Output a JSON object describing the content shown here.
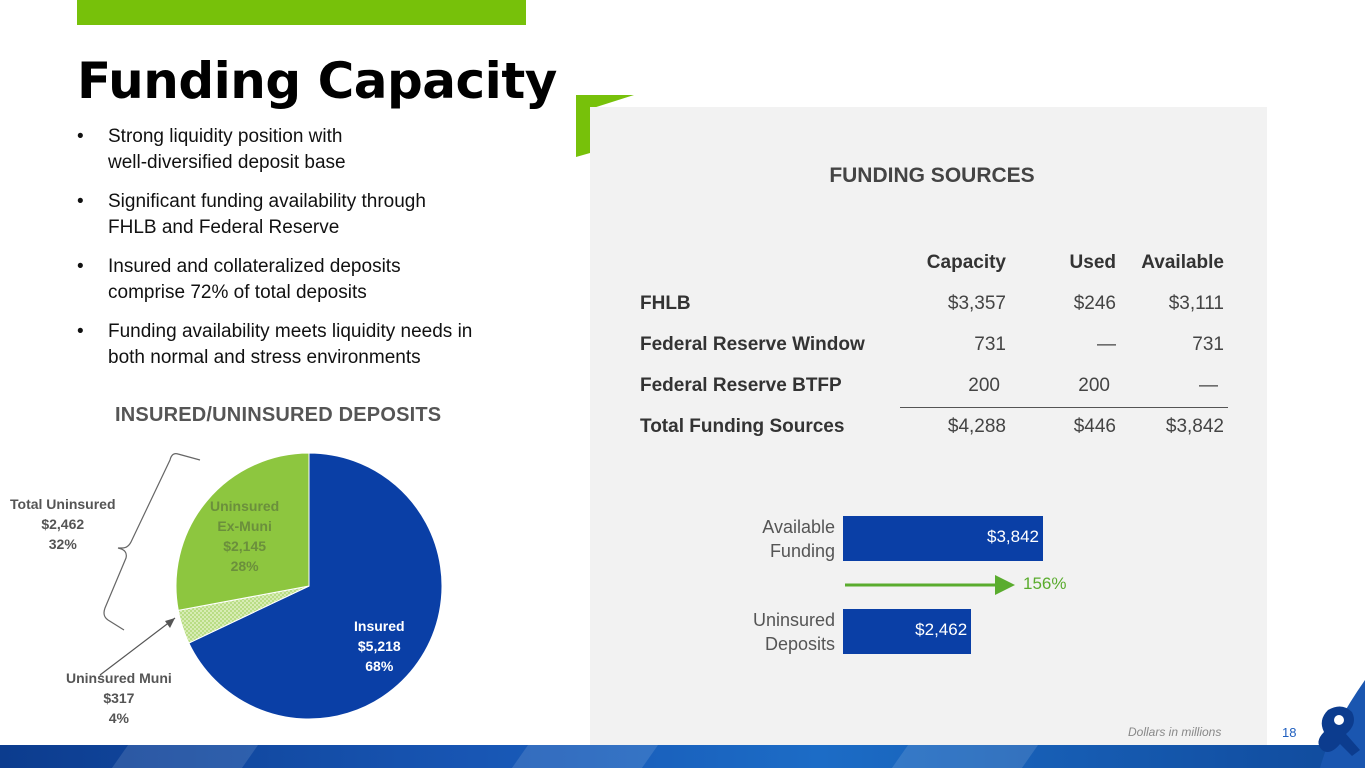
{
  "colors": {
    "accent_green": "#77c10a",
    "pie_green": "#8dc63f",
    "pie_blue": "#0a3fa6",
    "bar_blue": "#0a3fa6",
    "arrow_green": "#5aac2e",
    "panel_bg": "#f2f2f2"
  },
  "page": {
    "title": "Funding Capacity",
    "bullet_symbol": "•",
    "bullets": [
      {
        "line1": "Strong liquidity position with",
        "line2": "well-diversified deposit base"
      },
      {
        "line1": "Significant funding availability through",
        "line2": "FHLB and Federal Reserve"
      },
      {
        "line1": "Insured and collateralized deposits",
        "line2": "comprise 72% of total deposits"
      },
      {
        "line1": "Funding availability meets liquidity needs in",
        "line2": "both normal and stress environments"
      }
    ],
    "footnote": "Dollars in millions",
    "page_number": "18"
  },
  "deposits": {
    "title": "INSURED/UNINSURED DEPOSITS",
    "slices": [
      {
        "name": "Insured",
        "amount": "$5,218",
        "pct": "68%",
        "value": 5218
      },
      {
        "name": "Uninsured Muni",
        "amount": "$317",
        "pct": "4%",
        "value": 317
      },
      {
        "name_line1": "Uninsured",
        "name_line2": "Ex-Muni",
        "amount": "$2,145",
        "pct": "28%",
        "value": 2145
      }
    ],
    "total": {
      "name": "Total Uninsured",
      "amount": "$2,462",
      "pct": "32%"
    }
  },
  "funding_sources": {
    "title": "FUNDING SOURCES",
    "columns": [
      "Capacity",
      "Used",
      "Available"
    ],
    "rows": [
      {
        "label": "FHLB",
        "capacity": "$3,357",
        "used": "$246",
        "available": "$3,111"
      },
      {
        "label": "Federal Reserve Window",
        "capacity": "731",
        "used": "—",
        "available": "731"
      },
      {
        "label": "Federal Reserve BTFP",
        "capacity": "200",
        "used": "200",
        "available": "—"
      },
      {
        "label": "Total Funding Sources",
        "capacity": "$4,288",
        "used": "$446",
        "available": "$3,842"
      }
    ]
  },
  "chart_data": [
    {
      "type": "pie",
      "title": "INSURED/UNINSURED DEPOSITS",
      "categories": [
        "Insured",
        "Uninsured Muni",
        "Uninsured Ex-Muni"
      ],
      "values": [
        5218,
        317,
        2145
      ],
      "percent": [
        68,
        4,
        28
      ]
    },
    {
      "type": "bar",
      "orientation": "horizontal",
      "categories": [
        "Available Funding",
        "Uninsured Deposits"
      ],
      "values": [
        3842,
        2462
      ],
      "value_labels": [
        "$3,842",
        "$2,462"
      ],
      "annotation": "156%"
    }
  ],
  "bars": {
    "items": [
      {
        "label_line1": "Available",
        "label_line2": "Funding",
        "value_label": "$3,842",
        "value": 3842
      },
      {
        "label_line1": "Uninsured",
        "label_line2": "Deposits",
        "value_label": "$2,462",
        "value": 2462
      }
    ],
    "ratio_label": "156%"
  }
}
